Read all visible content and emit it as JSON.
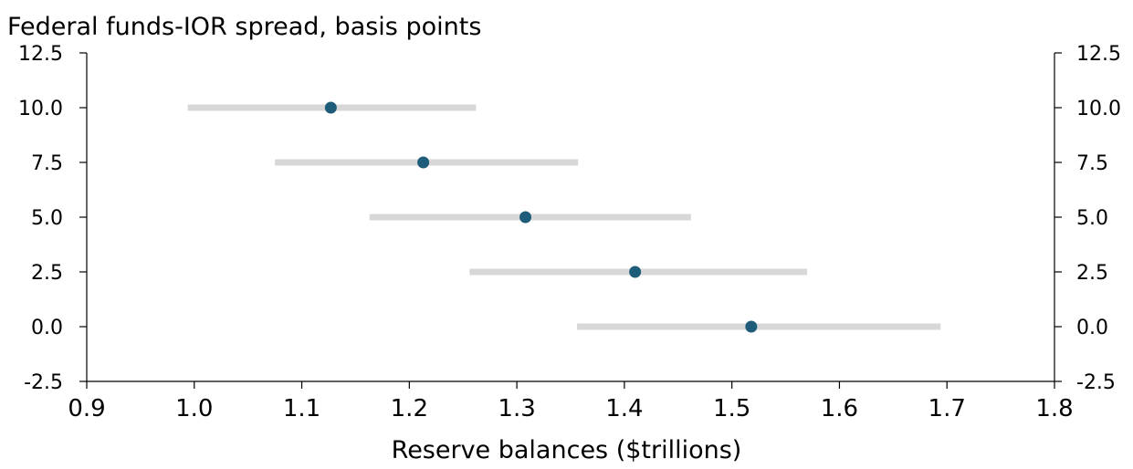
{
  "chart_data": {
    "type": "scatter",
    "title": "Federal funds-IOR spread, basis points",
    "xlabel": "Reserve balances ($trillions)",
    "xlim": [
      0.9,
      1.8
    ],
    "ylim": [
      -2.5,
      12.5
    ],
    "x_ticks": [
      "0.9",
      "1.0",
      "1.1",
      "1.2",
      "1.3",
      "1.4",
      "1.5",
      "1.6",
      "1.7",
      "1.8"
    ],
    "y_ticks": [
      "12.5",
      "10.0",
      "7.5",
      "5.0",
      "2.5",
      "0.0",
      "-2.5"
    ],
    "y_ticks_right": [
      "12.5",
      "10.0",
      "7.5",
      "5.0",
      "2.5",
      "0.0",
      "-2.5"
    ],
    "grid": false,
    "series": [
      {
        "points": [
          {
            "y": 10.0,
            "x": 1.127,
            "low": 0.994,
            "high": 1.262
          },
          {
            "y": 7.5,
            "x": 1.213,
            "low": 1.075,
            "high": 1.357
          },
          {
            "y": 5.0,
            "x": 1.308,
            "low": 1.163,
            "high": 1.462
          },
          {
            "y": 2.5,
            "x": 1.41,
            "low": 1.256,
            "high": 1.57
          },
          {
            "y": 0.0,
            "x": 1.518,
            "low": 1.356,
            "high": 1.694
          }
        ]
      }
    ],
    "colors": {
      "point": "#1f5c7a",
      "range": "#d8d8d8",
      "axis": "#000000"
    }
  }
}
